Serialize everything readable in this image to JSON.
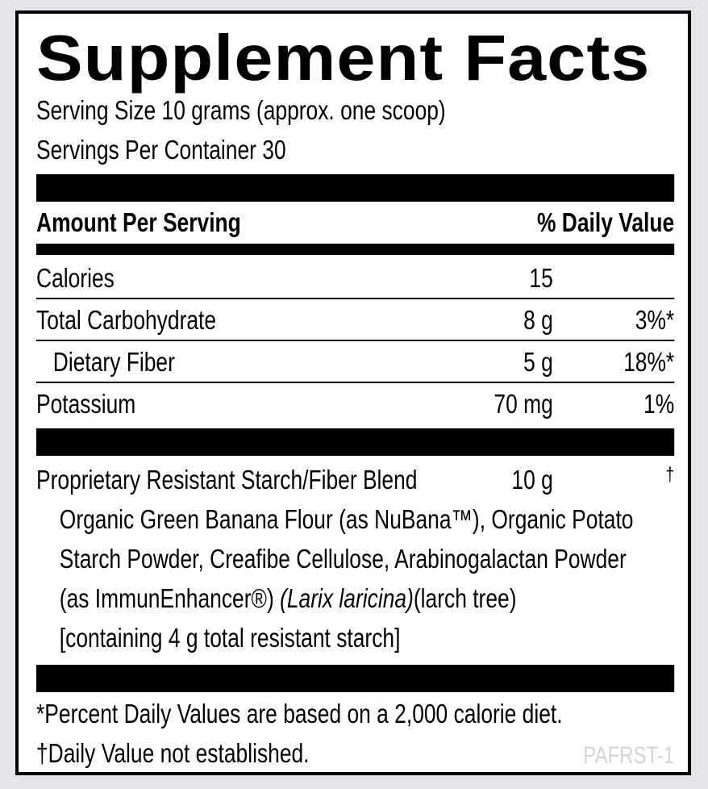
{
  "title": "Supplement Facts",
  "serving_size": "Serving Size 10 grams (approx. one scoop)",
  "servings_per_container": "Servings Per Container 30",
  "header": {
    "amount": "Amount Per Serving",
    "daily_value": "% Daily Value"
  },
  "rows": [
    {
      "name": "Calories",
      "amount": "15",
      "dv": ""
    },
    {
      "name": "Total Carbohydrate",
      "amount": "8 g",
      "dv": "3%*"
    },
    {
      "name": "Dietary Fiber",
      "amount": "5 g",
      "dv": "18%*"
    },
    {
      "name": "Potassium",
      "amount": "70 mg",
      "dv": "1%"
    }
  ],
  "blend": {
    "name": "Proprietary Resistant Starch/Fiber Blend",
    "amount": "10 g",
    "dv": "†",
    "lines": [
      "Organic Green Banana Flour (as NuBana™), Organic Potato",
      "Starch Powder, Creafibe Cellulose, Arabinogalactan Powder",
      "(as ImmunEnhancer®) ",
      "(Larix laricina)",
      "(larch tree)",
      "[containing 4 g total resistant starch]"
    ]
  },
  "footnotes": [
    "*Percent Daily Values are based on a 2,000 calorie diet.",
    "†Daily Value not established."
  ],
  "code": "PAFRST-1"
}
